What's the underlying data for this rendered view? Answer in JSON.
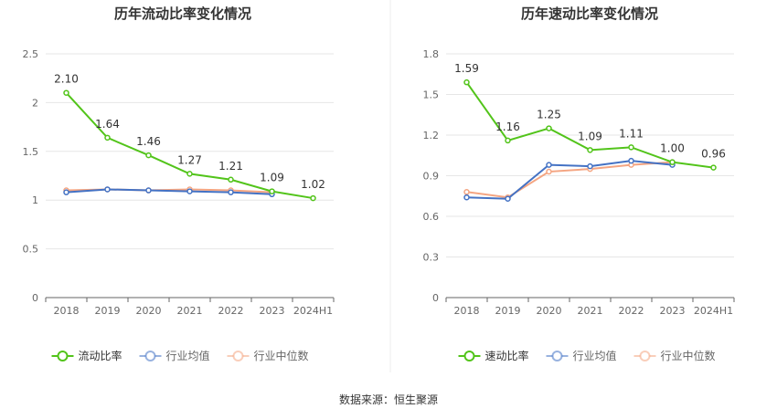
{
  "source": "数据来源：恒生聚源",
  "chart_data": [
    {
      "type": "line",
      "title": "历年流动比率变化情况",
      "categories": [
        "2018",
        "2019",
        "2020",
        "2021",
        "2022",
        "2023",
        "2024H1"
      ],
      "ylim": [
        0,
        2.5
      ],
      "yticks": [
        "0",
        "0.5",
        "1",
        "1.5",
        "2",
        "2.5"
      ],
      "ytick_values": [
        0,
        0.5,
        1,
        1.5,
        2,
        2.5
      ],
      "grid": true,
      "legend_position": "bottom",
      "series": [
        {
          "name": "流动比率",
          "color": "#52c41a",
          "values": [
            2.1,
            1.64,
            1.46,
            1.27,
            1.21,
            1.09,
            1.02
          ],
          "labels": [
            "2.10",
            "1.64",
            "1.46",
            "1.27",
            "1.21",
            "1.09",
            "1.02"
          ]
        },
        {
          "name": "行业均值",
          "color": "#4472c4",
          "values": [
            1.08,
            1.11,
            1.1,
            1.09,
            1.08,
            1.06,
            null
          ]
        },
        {
          "name": "行业中位数",
          "color": "#f4a582",
          "values": [
            1.1,
            1.11,
            1.1,
            1.11,
            1.1,
            1.08,
            null
          ]
        }
      ]
    },
    {
      "type": "line",
      "title": "历年速动比率变化情况",
      "categories": [
        "2018",
        "2019",
        "2020",
        "2021",
        "2022",
        "2023",
        "2024H1"
      ],
      "ylim": [
        0,
        1.8
      ],
      "yticks": [
        "0",
        "0.3",
        "0.6",
        "0.9",
        "1.2",
        "1.5",
        "1.8"
      ],
      "ytick_values": [
        0,
        0.3,
        0.6,
        0.9,
        1.2,
        1.5,
        1.8
      ],
      "grid": true,
      "legend_position": "bottom",
      "series": [
        {
          "name": "速动比率",
          "color": "#52c41a",
          "values": [
            1.59,
            1.16,
            1.25,
            1.09,
            1.11,
            1.0,
            0.96
          ],
          "labels": [
            "1.59",
            "1.16",
            "1.25",
            "1.09",
            "1.11",
            "1.00",
            "0.96"
          ]
        },
        {
          "name": "行业均值",
          "color": "#4472c4",
          "values": [
            0.74,
            0.73,
            0.98,
            0.97,
            1.01,
            0.98,
            null
          ]
        },
        {
          "name": "行业中位数",
          "color": "#f4a582",
          "values": [
            0.78,
            0.74,
            0.93,
            0.95,
            0.98,
            1.0,
            null
          ]
        }
      ]
    }
  ]
}
